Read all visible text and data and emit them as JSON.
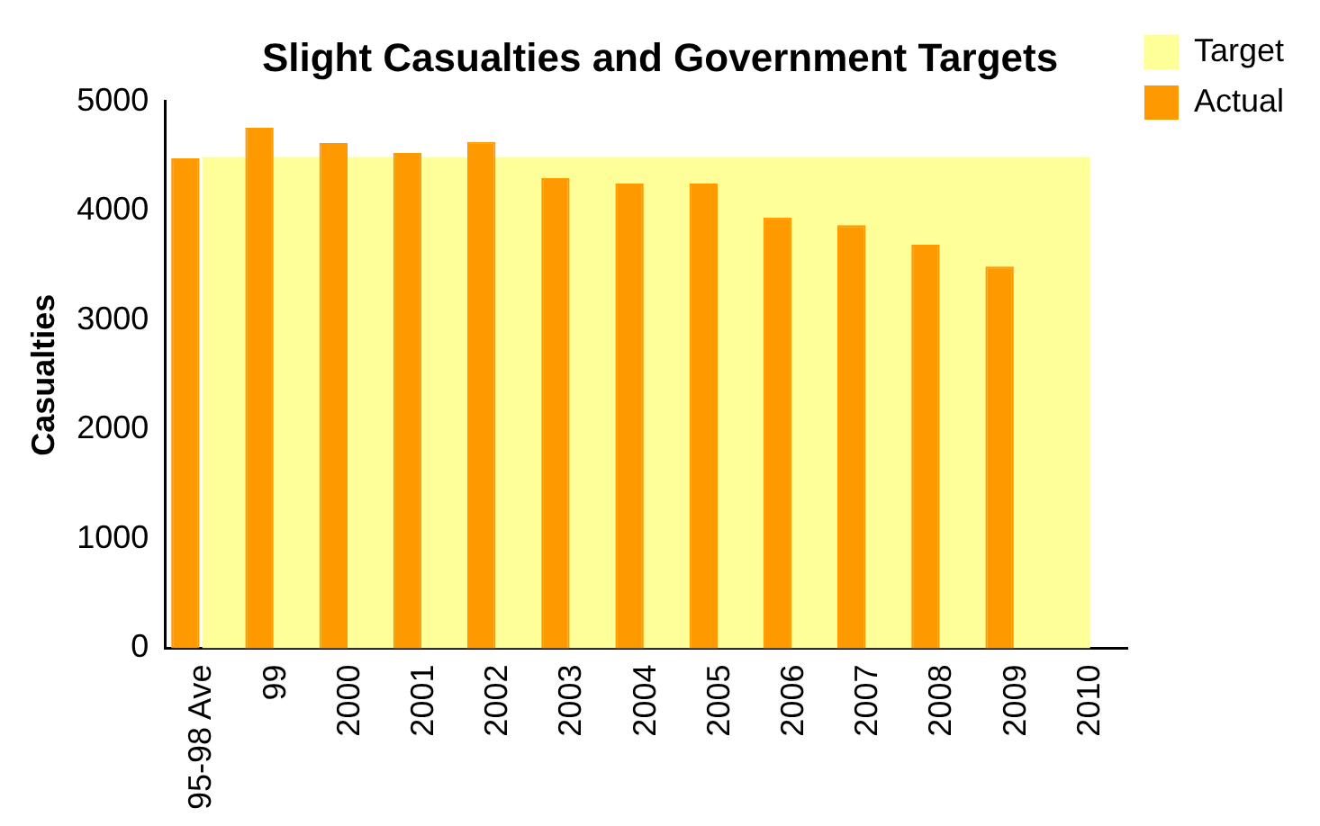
{
  "chart_data": {
    "type": "bar",
    "title": "Slight Casualties and Government Targets",
    "ylabel": "Casualties",
    "categories": [
      "95-98 Ave",
      "99",
      "2000",
      "2001",
      "2002",
      "2003",
      "2004",
      "2005",
      "2006",
      "2007",
      "2008",
      "2009",
      "2010"
    ],
    "series": [
      {
        "name": "Target",
        "type": "area",
        "color": "#ffff99",
        "values": [
          4480,
          4480,
          4480,
          4480,
          4480,
          4480,
          4480,
          4480,
          4480,
          4480,
          4480,
          4480,
          4480
        ]
      },
      {
        "name": "Actual",
        "type": "bar",
        "color": "#ff9900",
        "values": [
          4480,
          4760,
          4620,
          4530,
          4630,
          4300,
          4250,
          4250,
          3940,
          3870,
          3690,
          3490,
          null
        ]
      }
    ],
    "ylim": [
      0,
      5000
    ],
    "yticks": [
      0,
      1000,
      2000,
      3000,
      4000,
      5000
    ],
    "grid": false,
    "legend": "top right"
  }
}
